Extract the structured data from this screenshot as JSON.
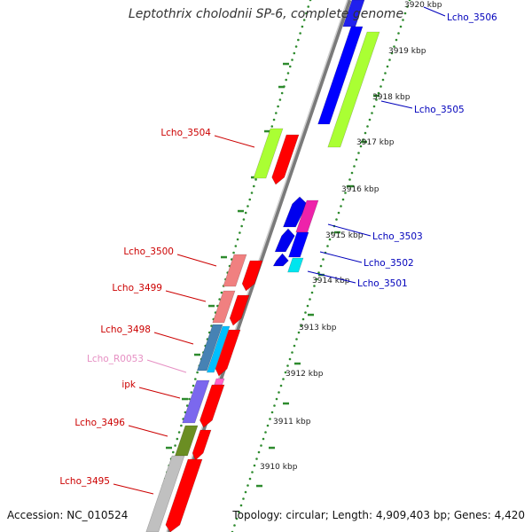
{
  "title": "Leptothrix cholodnii SP-6, complete genome",
  "footer": {
    "accession": "Accession: NC_010524",
    "summary": "Topology: circular; Length: 4,909,403 bp; Genes: 4,420"
  },
  "colors": {
    "plus_label": "#cc0000",
    "minus_label": "#0000bb",
    "rna_label": "#e68fc3",
    "tick": "#2e8b2e"
  },
  "kbp_ticks": [
    "3920 kbp",
    "3919 kbp",
    "3918 kbp",
    "3917 kbp",
    "3916 kbp",
    "3915 kbp",
    "3914 kbp",
    "3913 kbp",
    "3912 kbp",
    "3911 kbp",
    "3910 kbp"
  ],
  "gene_labels": [
    {
      "text": "Lcho_3506",
      "strand": "minus"
    },
    {
      "text": "Lcho_3505",
      "strand": "minus"
    },
    {
      "text": "Lcho_3504",
      "strand": "plus"
    },
    {
      "text": "Lcho_3503",
      "strand": "minus"
    },
    {
      "text": "Lcho_3502",
      "strand": "minus"
    },
    {
      "text": "Lcho_3501",
      "strand": "minus"
    },
    {
      "text": "Lcho_3500",
      "strand": "plus"
    },
    {
      "text": "Lcho_3499",
      "strand": "plus"
    },
    {
      "text": "Lcho_3498",
      "strand": "plus"
    },
    {
      "text": "Lcho_R0053",
      "strand": "rna"
    },
    {
      "text": "ipk",
      "strand": "plus"
    },
    {
      "text": "Lcho_3496",
      "strand": "plus"
    },
    {
      "text": "Lcho_3495",
      "strand": "plus"
    }
  ]
}
